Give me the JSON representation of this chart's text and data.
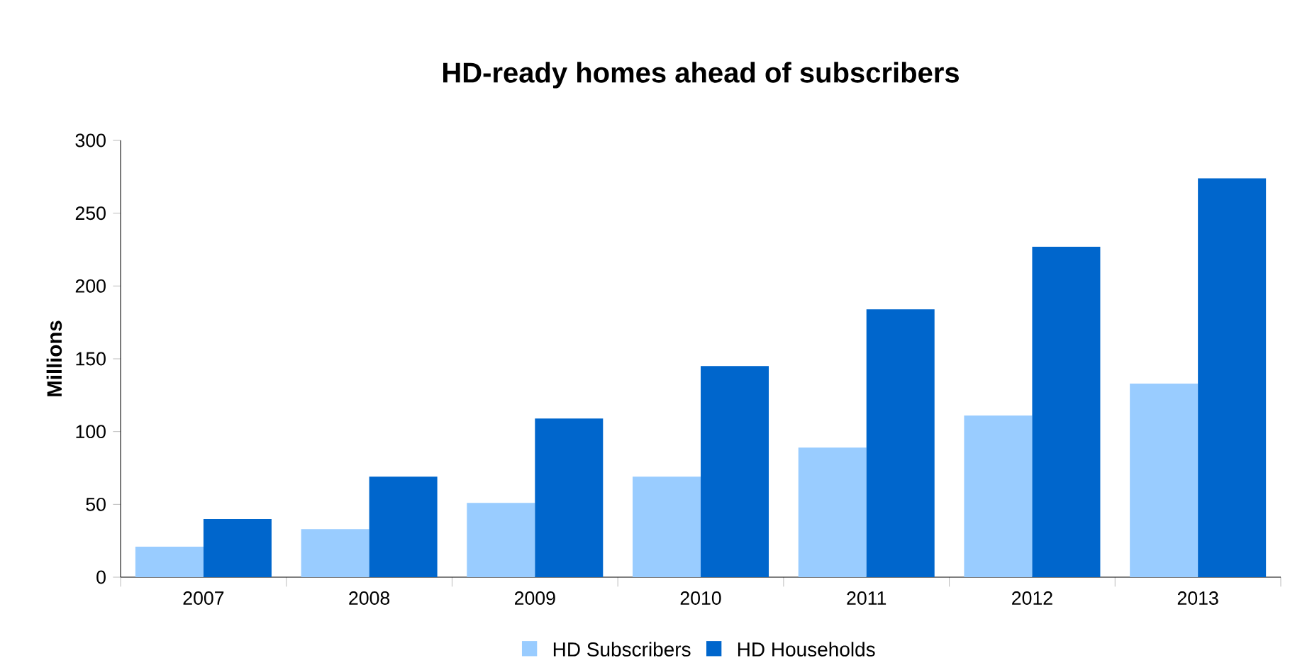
{
  "chart_data": {
    "type": "bar",
    "title": "HD-ready homes ahead of subscribers",
    "ylabel": "Millions",
    "categories": [
      "2007",
      "2008",
      "2009",
      "2010",
      "2011",
      "2012",
      "2013"
    ],
    "series": [
      {
        "name": "HD Subscribers",
        "color": "#99ccff",
        "values": [
          21,
          33,
          51,
          69,
          89,
          111,
          133
        ]
      },
      {
        "name": "HD Households",
        "color": "#0066cc",
        "values": [
          40,
          69,
          109,
          145,
          184,
          227,
          274
        ]
      }
    ],
    "ylim": [
      0,
      300
    ],
    "yticks": [
      0,
      50,
      100,
      150,
      200,
      250,
      300
    ],
    "grid": false,
    "legend": "bottom"
  }
}
